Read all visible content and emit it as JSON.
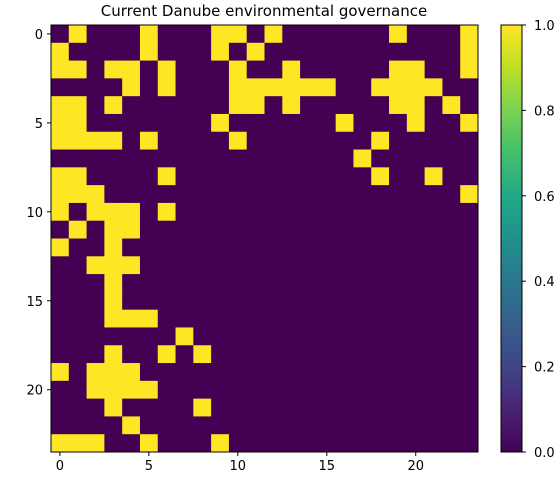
{
  "chart_data": {
    "type": "heatmap",
    "title": "Current Danube environmental governance",
    "xlabel": "",
    "ylabel": "",
    "n_rows": 24,
    "n_cols": 24,
    "x_ticks": [
      0,
      5,
      10,
      15,
      20
    ],
    "y_ticks": [
      0,
      5,
      10,
      15,
      20
    ],
    "colorbar": {
      "min": 0.0,
      "max": 1.0,
      "ticks": [
        "0.0",
        "0.2",
        "0.4",
        "0.6",
        "0.8",
        "1.0"
      ],
      "colormap": "viridis"
    },
    "colors": {
      "low": "#440154",
      "high": "#fde725"
    },
    "grid": false,
    "matrix": [
      [
        0,
        1,
        0,
        0,
        0,
        1,
        0,
        0,
        0,
        1,
        1,
        0,
        1,
        0,
        0,
        0,
        0,
        0,
        0,
        1,
        0,
        0,
        0,
        1
      ],
      [
        1,
        0,
        0,
        0,
        0,
        1,
        0,
        0,
        0,
        1,
        0,
        1,
        0,
        0,
        0,
        0,
        0,
        0,
        0,
        0,
        0,
        0,
        0,
        1
      ],
      [
        1,
        1,
        0,
        1,
        1,
        0,
        1,
        0,
        0,
        0,
        1,
        0,
        0,
        1,
        0,
        0,
        0,
        0,
        0,
        1,
        1,
        0,
        0,
        1
      ],
      [
        0,
        0,
        0,
        0,
        1,
        0,
        1,
        0,
        0,
        0,
        1,
        1,
        1,
        1,
        1,
        1,
        0,
        0,
        1,
        1,
        1,
        1,
        0,
        0
      ],
      [
        1,
        1,
        0,
        1,
        0,
        0,
        0,
        0,
        0,
        0,
        1,
        1,
        0,
        1,
        0,
        0,
        0,
        0,
        0,
        1,
        1,
        0,
        1,
        0
      ],
      [
        1,
        1,
        0,
        0,
        0,
        0,
        0,
        0,
        0,
        1,
        0,
        0,
        0,
        0,
        0,
        0,
        1,
        0,
        0,
        0,
        1,
        0,
        0,
        1
      ],
      [
        1,
        1,
        1,
        1,
        0,
        1,
        0,
        0,
        0,
        0,
        1,
        0,
        0,
        0,
        0,
        0,
        0,
        0,
        1,
        0,
        0,
        0,
        0,
        0
      ],
      [
        0,
        0,
        0,
        0,
        0,
        0,
        0,
        0,
        0,
        0,
        0,
        0,
        0,
        0,
        0,
        0,
        0,
        1,
        0,
        0,
        0,
        0,
        0,
        0
      ],
      [
        1,
        1,
        0,
        0,
        0,
        0,
        1,
        0,
        0,
        0,
        0,
        0,
        0,
        0,
        0,
        0,
        0,
        0,
        1,
        0,
        0,
        1,
        0,
        0
      ],
      [
        1,
        1,
        1,
        0,
        0,
        0,
        0,
        0,
        0,
        0,
        0,
        0,
        0,
        0,
        0,
        0,
        0,
        0,
        0,
        0,
        0,
        0,
        0,
        1
      ],
      [
        1,
        0,
        1,
        1,
        1,
        0,
        1,
        0,
        0,
        0,
        0,
        0,
        0,
        0,
        0,
        0,
        0,
        0,
        0,
        0,
        0,
        0,
        0,
        0
      ],
      [
        0,
        1,
        0,
        1,
        1,
        0,
        0,
        0,
        0,
        0,
        0,
        0,
        0,
        0,
        0,
        0,
        0,
        0,
        0,
        0,
        0,
        0,
        0,
        0
      ],
      [
        1,
        0,
        0,
        1,
        0,
        0,
        0,
        0,
        0,
        0,
        0,
        0,
        0,
        0,
        0,
        0,
        0,
        0,
        0,
        0,
        0,
        0,
        0,
        0
      ],
      [
        0,
        0,
        1,
        1,
        1,
        0,
        0,
        0,
        0,
        0,
        0,
        0,
        0,
        0,
        0,
        0,
        0,
        0,
        0,
        0,
        0,
        0,
        0,
        0
      ],
      [
        0,
        0,
        0,
        1,
        0,
        0,
        0,
        0,
        0,
        0,
        0,
        0,
        0,
        0,
        0,
        0,
        0,
        0,
        0,
        0,
        0,
        0,
        0,
        0
      ],
      [
        0,
        0,
        0,
        1,
        0,
        0,
        0,
        0,
        0,
        0,
        0,
        0,
        0,
        0,
        0,
        0,
        0,
        0,
        0,
        0,
        0,
        0,
        0,
        0
      ],
      [
        0,
        0,
        0,
        1,
        1,
        1,
        0,
        0,
        0,
        0,
        0,
        0,
        0,
        0,
        0,
        0,
        0,
        0,
        0,
        0,
        0,
        0,
        0,
        0
      ],
      [
        0,
        0,
        0,
        0,
        0,
        0,
        0,
        1,
        0,
        0,
        0,
        0,
        0,
        0,
        0,
        0,
        0,
        0,
        0,
        0,
        0,
        0,
        0,
        0
      ],
      [
        0,
        0,
        0,
        1,
        0,
        0,
        1,
        0,
        1,
        0,
        0,
        0,
        0,
        0,
        0,
        0,
        0,
        0,
        0,
        0,
        0,
        0,
        0,
        0
      ],
      [
        1,
        0,
        1,
        1,
        1,
        0,
        0,
        0,
        0,
        0,
        0,
        0,
        0,
        0,
        0,
        0,
        0,
        0,
        0,
        0,
        0,
        0,
        0,
        0
      ],
      [
        0,
        0,
        1,
        1,
        1,
        1,
        0,
        0,
        0,
        0,
        0,
        0,
        0,
        0,
        0,
        0,
        0,
        0,
        0,
        0,
        0,
        0,
        0,
        0
      ],
      [
        0,
        0,
        0,
        1,
        0,
        0,
        0,
        0,
        1,
        0,
        0,
        0,
        0,
        0,
        0,
        0,
        0,
        0,
        0,
        0,
        0,
        0,
        0,
        0
      ],
      [
        0,
        0,
        0,
        0,
        1,
        0,
        0,
        0,
        0,
        0,
        0,
        0,
        0,
        0,
        0,
        0,
        0,
        0,
        0,
        0,
        0,
        0,
        0,
        0
      ],
      [
        1,
        1,
        1,
        0,
        0,
        1,
        0,
        0,
        0,
        1,
        0,
        0,
        0,
        0,
        0,
        0,
        0,
        0,
        0,
        0,
        0,
        0,
        0,
        0
      ]
    ]
  }
}
